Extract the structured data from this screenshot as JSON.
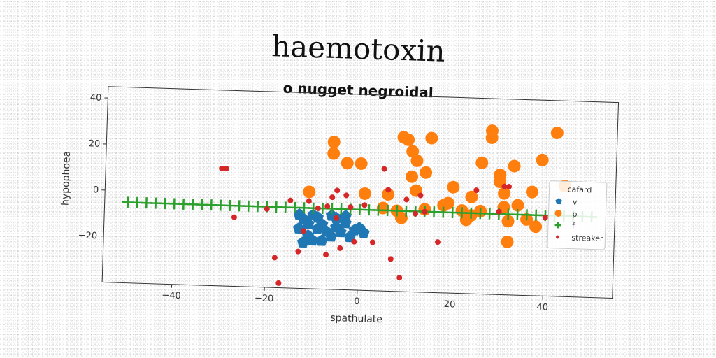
{
  "chart_data": {
    "type": "scatter",
    "title": "haemotoxin",
    "subtitle": "o nugget negroidal",
    "xlabel": "spathulate",
    "ylabel": "hypophoea",
    "xlim": [
      -55,
      55
    ],
    "ylim": [
      -40,
      45
    ],
    "xticks": [
      -40,
      -20,
      0,
      20,
      40
    ],
    "yticks": [
      -20,
      0,
      20,
      40
    ],
    "legend": {
      "position": "right",
      "title": "cafard"
    },
    "series": [
      {
        "name": "v",
        "color": "#1f77b4",
        "marker": "pentagon",
        "size": 9,
        "points": [
          [
            -12,
            -10
          ],
          [
            -11,
            -12
          ],
          [
            -10,
            -8
          ],
          [
            -9,
            -14
          ],
          [
            -13,
            -14
          ],
          [
            -11,
            -17
          ],
          [
            -10,
            -19
          ],
          [
            -12,
            -20
          ],
          [
            -9,
            -9
          ],
          [
            -8,
            -12
          ],
          [
            -7,
            -15
          ],
          [
            -6,
            -8
          ],
          [
            -5,
            -9
          ],
          [
            -5,
            -13
          ],
          [
            -4,
            -15
          ],
          [
            -3,
            -11
          ],
          [
            -2,
            -17
          ],
          [
            -1,
            -14
          ],
          [
            0,
            -13
          ],
          [
            1,
            -15
          ],
          [
            -6,
            -17
          ],
          [
            -8,
            -19
          ],
          [
            -13,
            -8
          ],
          [
            -3,
            -8
          ]
        ]
      },
      {
        "name": "p",
        "color": "#ff7f0e",
        "marker": "circle",
        "size": 9,
        "points": [
          [
            -11,
            2
          ],
          [
            -6,
            24
          ],
          [
            -6,
            19
          ],
          [
            -3,
            15
          ],
          [
            0,
            15
          ],
          [
            1,
            2
          ],
          [
            5,
            -4
          ],
          [
            6,
            2
          ],
          [
            8,
            -5
          ],
          [
            9,
            -8
          ],
          [
            9,
            27
          ],
          [
            10,
            26
          ],
          [
            11,
            10
          ],
          [
            11,
            21
          ],
          [
            12,
            17
          ],
          [
            12,
            4
          ],
          [
            14,
            -4
          ],
          [
            14,
            12
          ],
          [
            15,
            27
          ],
          [
            19,
            -1
          ],
          [
            20,
            6
          ],
          [
            22,
            -4
          ],
          [
            24,
            -6
          ],
          [
            24,
            2
          ],
          [
            26,
            -4
          ],
          [
            26,
            17
          ],
          [
            28,
            31
          ],
          [
            28,
            28
          ],
          [
            30,
            9
          ],
          [
            30,
            12
          ],
          [
            31,
            4
          ],
          [
            31,
            -2
          ],
          [
            32,
            -8
          ],
          [
            32,
            -17
          ],
          [
            33,
            16
          ],
          [
            34,
            -1
          ],
          [
            36,
            -7
          ],
          [
            37,
            5
          ],
          [
            38,
            -10
          ],
          [
            39,
            19
          ],
          [
            42,
            31
          ],
          [
            44,
            8
          ],
          [
            23,
            -8
          ],
          [
            18,
            -2
          ]
        ]
      },
      {
        "name": "f",
        "color": "#2ca02c",
        "marker": "plus",
        "size": 8,
        "x_start": -50,
        "x_end": 50,
        "x_step": 2,
        "y": -5
      },
      {
        "name": "streaker",
        "color": "#d62728",
        "marker": "dot",
        "size": 4,
        "points": [
          [
            -30,
            11
          ],
          [
            -29,
            11
          ],
          [
            -27,
            -10
          ],
          [
            -18,
            -27
          ],
          [
            -17,
            -38
          ],
          [
            -15,
            -2
          ],
          [
            -13,
            -24
          ],
          [
            -12,
            -15
          ],
          [
            -11,
            -2
          ],
          [
            -9,
            -5
          ],
          [
            -7,
            -25
          ],
          [
            -7,
            -4
          ],
          [
            -6,
            0
          ],
          [
            -5,
            3
          ],
          [
            -5,
            -9
          ],
          [
            -4,
            -22
          ],
          [
            -3,
            1
          ],
          [
            -2,
            -4
          ],
          [
            -1,
            -19
          ],
          [
            1,
            -3
          ],
          [
            3,
            -19
          ],
          [
            5,
            13
          ],
          [
            6,
            4
          ],
          [
            7,
            -26
          ],
          [
            9,
            -34
          ],
          [
            10,
            0
          ],
          [
            12,
            -6
          ],
          [
            13,
            2
          ],
          [
            14,
            -5
          ],
          [
            17,
            -18
          ],
          [
            25,
            5
          ],
          [
            30,
            -4
          ],
          [
            31,
            7
          ],
          [
            32,
            7
          ],
          [
            40,
            -6
          ],
          [
            -20,
            -6
          ]
        ]
      }
    ]
  }
}
